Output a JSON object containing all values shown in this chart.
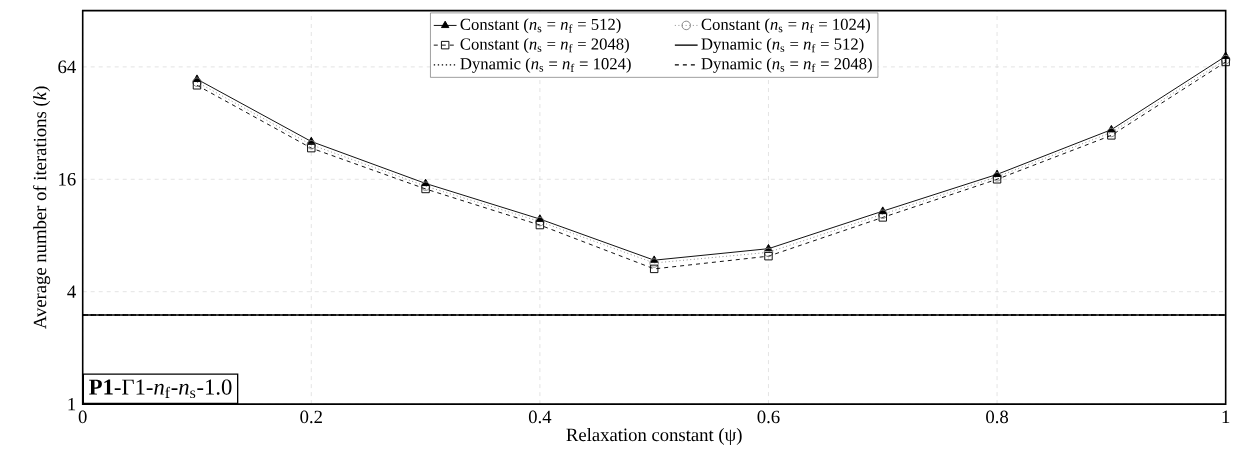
{
  "chart_data": {
    "type": "line",
    "xlabel": "Relaxation constant (ψ)",
    "ylabel": "Average number of iterations (*k*)",
    "annotations": [
      "**P1**-Γ1-*n*$_{f}$-*n*$_{s}$-1.0"
    ],
    "xlim": [
      0,
      1
    ],
    "ylim": [
      1,
      128
    ],
    "xticks": [
      0,
      0.2,
      0.4,
      0.6,
      0.8,
      1
    ],
    "yticks": [
      1,
      4,
      16,
      64
    ],
    "log": "y",
    "grid": true,
    "legend": "top",
    "series": [
      {
        "name": "Constant (*n*$_{s}$ = *n*$_{f}$ = 512)",
        "color": "#000000",
        "marker": "triangle",
        "line_style": "solid",
        "x": [
          0.1,
          0.2,
          0.3,
          0.4,
          0.5,
          0.6,
          0.7,
          0.8,
          0.9,
          1.0
        ],
        "values": [
          55,
          25.5,
          15.2,
          9.8,
          5.9,
          6.8,
          10.8,
          17,
          29.5,
          73
        ]
      },
      {
        "name": "Constant (*n*$_{s}$ = *n*$_{f}$ = 1024)",
        "color": "#808080",
        "marker": "circle",
        "line_style": "dotted",
        "x": [
          0.1,
          0.2,
          0.3,
          0.4,
          0.5,
          0.6,
          0.7,
          0.8,
          0.9,
          1.0
        ],
        "values": [
          53,
          24.5,
          14.7,
          9.5,
          5.7,
          6.5,
          10.4,
          16.5,
          28.5,
          70
        ]
      },
      {
        "name": "Constant (*n*$_{s}$ = *n*$_{f}$ = 2048)",
        "color": "#000000",
        "marker": "square",
        "line_style": "dashed",
        "x": [
          0.1,
          0.2,
          0.3,
          0.4,
          0.5,
          0.6,
          0.7,
          0.8,
          0.9,
          1.0
        ],
        "values": [
          51,
          23.5,
          14.2,
          9.1,
          5.3,
          6.2,
          10.0,
          16.0,
          27.5,
          68
        ]
      },
      {
        "name": "Dynamic (*n*$_{s}$ = *n*$_{f}$ = 512)",
        "color": "#000000",
        "marker": "none",
        "line_style": "solid",
        "x": [
          0,
          1
        ],
        "values": [
          3,
          3
        ]
      },
      {
        "name": "Dynamic (*n*$_{s}$ = *n*$_{f}$ = 1024)",
        "color": "#000000",
        "marker": "none",
        "line_style": "dotted",
        "x": [
          0,
          1
        ],
        "values": [
          3,
          3
        ]
      },
      {
        "name": "Dynamic (*n*$_{s}$ = *n*$_{f}$ = 2048)",
        "color": "#000000",
        "marker": "none",
        "line_style": "dashed",
        "x": [
          0,
          1
        ],
        "values": [
          3,
          3
        ]
      }
    ]
  }
}
